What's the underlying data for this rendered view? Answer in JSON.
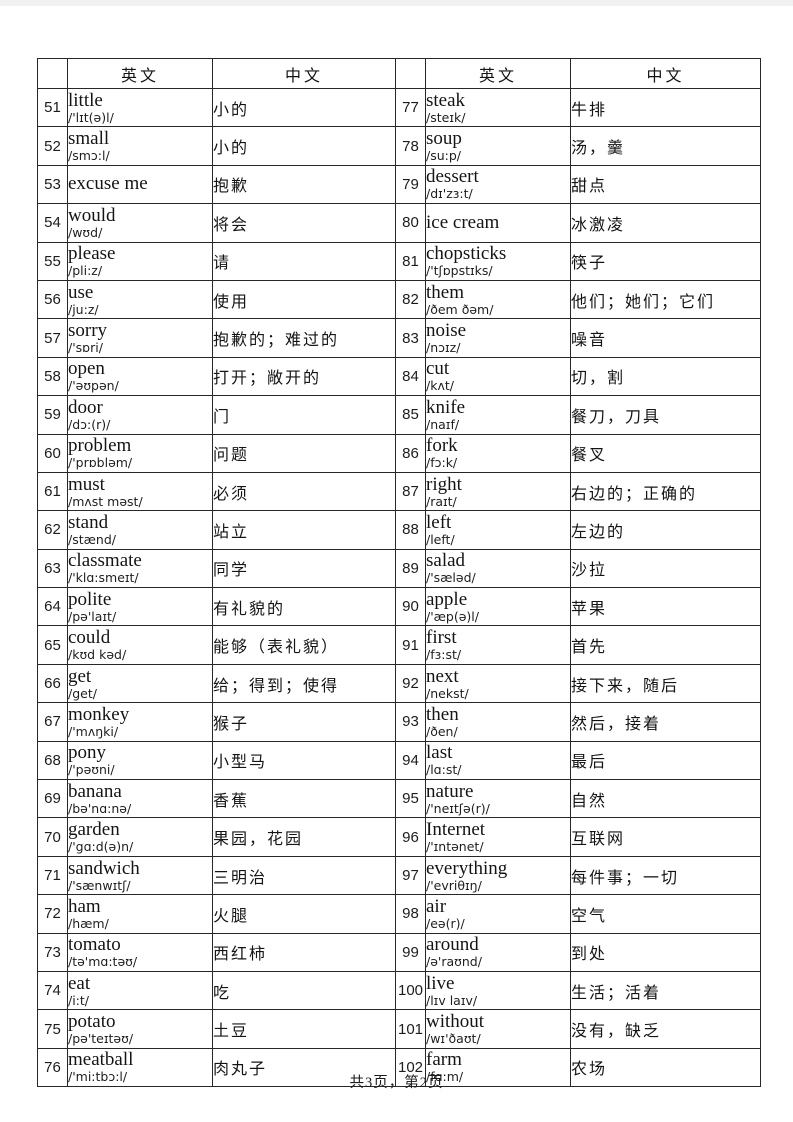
{
  "document": {
    "footer_page_info": "共3页，第2页"
  },
  "table": {
    "header": {
      "english": "英文",
      "chinese": "中文"
    },
    "left_rows": [
      {
        "num": "51",
        "word": "little",
        "ipa": "/'lɪt(ə)l/",
        "cn": "小的"
      },
      {
        "num": "52",
        "word": "small",
        "ipa": "/smɔ:l/",
        "cn": "小的"
      },
      {
        "num": "53",
        "word": "excuse me",
        "ipa": "",
        "cn": "抱歉"
      },
      {
        "num": "54",
        "word": "would",
        "ipa": "/wʊd/",
        "cn": "将会"
      },
      {
        "num": "55",
        "word": "please",
        "ipa": "/pli:z/",
        "cn": "请"
      },
      {
        "num": "56",
        "word": "use",
        "ipa": "/ju:z/",
        "cn": "使用"
      },
      {
        "num": "57",
        "word": "sorry",
        "ipa": "/'sɒri/",
        "cn": "抱歉的；难过的"
      },
      {
        "num": "58",
        "word": "open",
        "ipa": "/'əʊpən/",
        "cn": "打开；敞开的"
      },
      {
        "num": "59",
        "word": "door",
        "ipa": "/dɔ:(r)/",
        "cn": "门"
      },
      {
        "num": "60",
        "word": "problem",
        "ipa": "/'prɒbləm/",
        "cn": "问题"
      },
      {
        "num": "61",
        "word": "must",
        "ipa": "/mʌst  məst/",
        "cn": "必须"
      },
      {
        "num": "62",
        "word": "stand",
        "ipa": "/stænd/",
        "cn": "站立"
      },
      {
        "num": "63",
        "word": "classmate",
        "ipa": "/'klɑ:smeɪt/",
        "cn": "同学"
      },
      {
        "num": "64",
        "word": "polite",
        "ipa": "/pə'laɪt/",
        "cn": "有礼貌的"
      },
      {
        "num": "65",
        "word": "could",
        "ipa": "/kʊd kəd/",
        "cn": "能够（表礼貌）"
      },
      {
        "num": "66",
        "word": "get",
        "ipa": "/get/",
        "cn": "给；得到；使得"
      },
      {
        "num": "67",
        "word": "monkey",
        "ipa": "/'mʌŋki/",
        "cn": "猴子"
      },
      {
        "num": "68",
        "word": "pony",
        "ipa": "/'pəʊni/",
        "cn": "小型马"
      },
      {
        "num": "69",
        "word": "banana",
        "ipa": "/bə'nɑ:nə/",
        "cn": "香蕉"
      },
      {
        "num": "70",
        "word": "garden",
        "ipa": "/'gɑ:d(ə)n/",
        "cn": "果园，花园"
      },
      {
        "num": "71",
        "word": "sandwich",
        "ipa": "/'sænwɪtʃ/",
        "cn": "三明治"
      },
      {
        "num": "72",
        "word": "ham",
        "ipa": "/hæm/",
        "cn": "火腿"
      },
      {
        "num": "73",
        "word": "tomato",
        "ipa": "/tə'mɑ:təʊ/",
        "cn": "西红柿"
      },
      {
        "num": "74",
        "word": "eat",
        "ipa": "/i:t/",
        "cn": "吃"
      },
      {
        "num": "75",
        "word": "potato",
        "ipa": "/pə'teɪtəʊ/",
        "cn": "土豆"
      },
      {
        "num": "76",
        "word": "meatball",
        "ipa": "/'mi:tbɔ:l/",
        "cn": "肉丸子"
      }
    ],
    "right_rows": [
      {
        "num": "77",
        "word": "steak",
        "ipa": "/steɪk/",
        "cn": "牛排"
      },
      {
        "num": "78",
        "word": "soup",
        "ipa": "/su:p/",
        "cn": "汤，羹"
      },
      {
        "num": "79",
        "word": "dessert",
        "ipa": "/dɪ'zɜ:t/",
        "cn": "甜点"
      },
      {
        "num": "80",
        "word": "ice cream",
        "ipa": "",
        "cn": "冰激凌"
      },
      {
        "num": "81",
        "word": "chopsticks",
        "ipa": "/'tʃɒpstɪks/",
        "cn": "筷子"
      },
      {
        "num": "82",
        "word": "them",
        "ipa": "/ðem ðəm/",
        "cn": "他们；她们；它们"
      },
      {
        "num": "83",
        "word": "noise",
        "ipa": "/nɔɪz/",
        "cn": "噪音"
      },
      {
        "num": "84",
        "word": "cut",
        "ipa": "/kʌt/",
        "cn": "切，割"
      },
      {
        "num": "85",
        "word": "knife",
        "ipa": "/naɪf/",
        "cn": "餐刀，刀具"
      },
      {
        "num": "86",
        "word": "fork",
        "ipa": "/fɔ:k/",
        "cn": "餐叉"
      },
      {
        "num": "87",
        "word": "right",
        "ipa": "/raɪt/",
        "cn": "右边的；正确的"
      },
      {
        "num": "88",
        "word": "left",
        "ipa": "/left/",
        "cn": "左边的"
      },
      {
        "num": "89",
        "word": "salad",
        "ipa": "/'sæləd/",
        "cn": "沙拉"
      },
      {
        "num": "90",
        "word": "apple",
        "ipa": "/'æp(ə)l/",
        "cn": "苹果"
      },
      {
        "num": "91",
        "word": "first",
        "ipa": "/fɜ:st/",
        "cn": "首先"
      },
      {
        "num": "92",
        "word": "next",
        "ipa": "/nekst/",
        "cn": "接下来，随后"
      },
      {
        "num": "93",
        "word": "then",
        "ipa": "/ðen/",
        "cn": "然后，接着"
      },
      {
        "num": "94",
        "word": "last",
        "ipa": "/lɑ:st/",
        "cn": "最后"
      },
      {
        "num": "95",
        "word": "nature",
        "ipa": "/'neɪtʃə(r)/",
        "cn": "自然"
      },
      {
        "num": "96",
        "word": "Internet",
        "ipa": "/'ɪntənet/",
        "cn": "互联网"
      },
      {
        "num": "97",
        "word": "everything",
        "ipa": "/'evriθɪŋ/",
        "cn": "每件事；一切"
      },
      {
        "num": "98",
        "word": "air",
        "ipa": "/eə(r)/",
        "cn": "空气"
      },
      {
        "num": "99",
        "word": "around",
        "ipa": "/ə'raʊnd/",
        "cn": "到处"
      },
      {
        "num": "100",
        "word": "live",
        "ipa": "/lɪv laɪv/",
        "cn": "生活；活着"
      },
      {
        "num": "101",
        "word": "without",
        "ipa": "/wɪ'ðaʊt/",
        "cn": "没有，缺乏"
      },
      {
        "num": "102",
        "word": "farm",
        "ipa": "/fɑ:m/",
        "cn": "农场"
      }
    ]
  }
}
